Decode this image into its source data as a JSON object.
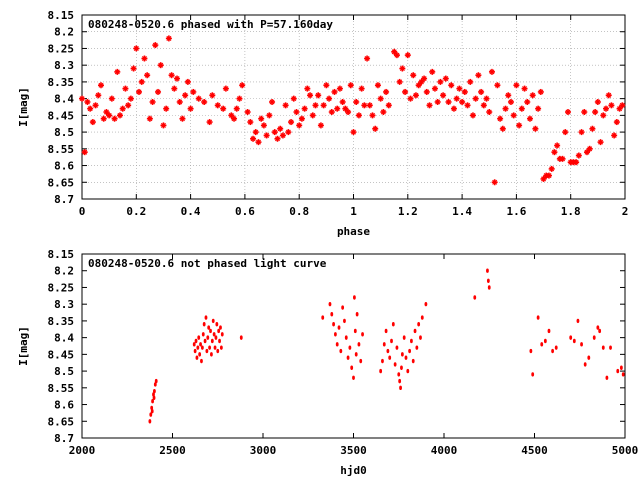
{
  "chart_data": [
    {
      "type": "scatter",
      "title": "080248-0520.6 phased with P=57.160day",
      "xlabel": "phase",
      "ylabel": "I[mag]",
      "xlim": [
        0,
        2
      ],
      "ylim": [
        8.7,
        8.15
      ],
      "x_ticks": [
        "0",
        "0.2",
        "0.4",
        "0.6",
        "0.8",
        "1",
        "1.2",
        "1.4",
        "1.6",
        "1.8",
        "2"
      ],
      "x_tick_values": [
        0,
        0.2,
        0.4,
        0.6,
        0.8,
        1.0,
        1.2,
        1.4,
        1.6,
        1.8,
        2.0
      ],
      "y_ticks": [
        "8.15",
        "8.2",
        "8.25",
        "8.3",
        "8.35",
        "8.4",
        "8.45",
        "8.5",
        "8.55",
        "8.6",
        "8.65",
        "8.7"
      ],
      "y_tick_values": [
        8.15,
        8.2,
        8.25,
        8.3,
        8.35,
        8.4,
        8.45,
        8.5,
        8.55,
        8.6,
        8.65,
        8.7
      ],
      "grid": true,
      "marker_color": "#ff0000",
      "points": [
        [
          0.0,
          8.4
        ],
        [
          0.01,
          8.56
        ],
        [
          0.02,
          8.41
        ],
        [
          0.03,
          8.43
        ],
        [
          0.04,
          8.47
        ],
        [
          0.05,
          8.42
        ],
        [
          0.06,
          8.39
        ],
        [
          0.07,
          8.36
        ],
        [
          0.08,
          8.46
        ],
        [
          0.09,
          8.44
        ],
        [
          0.1,
          8.45
        ],
        [
          0.11,
          8.4
        ],
        [
          0.12,
          8.46
        ],
        [
          0.13,
          8.32
        ],
        [
          0.14,
          8.45
        ],
        [
          0.15,
          8.43
        ],
        [
          0.16,
          8.37
        ],
        [
          0.17,
          8.42
        ],
        [
          0.18,
          8.4
        ],
        [
          0.19,
          8.31
        ],
        [
          0.2,
          8.25
        ],
        [
          0.21,
          8.38
        ],
        [
          0.22,
          8.35
        ],
        [
          0.23,
          8.28
        ],
        [
          0.24,
          8.33
        ],
        [
          0.25,
          8.46
        ],
        [
          0.26,
          8.41
        ],
        [
          0.27,
          8.24
        ],
        [
          0.28,
          8.38
        ],
        [
          0.29,
          8.3
        ],
        [
          0.3,
          8.48
        ],
        [
          0.31,
          8.43
        ],
        [
          0.32,
          8.22
        ],
        [
          0.33,
          8.33
        ],
        [
          0.34,
          8.37
        ],
        [
          0.35,
          8.34
        ],
        [
          0.36,
          8.41
        ],
        [
          0.37,
          8.46
        ],
        [
          0.38,
          8.39
        ],
        [
          0.39,
          8.35
        ],
        [
          0.4,
          8.43
        ],
        [
          0.41,
          8.38
        ],
        [
          0.43,
          8.4
        ],
        [
          0.45,
          8.41
        ],
        [
          0.47,
          8.47
        ],
        [
          0.48,
          8.39
        ],
        [
          0.5,
          8.42
        ],
        [
          0.52,
          8.43
        ],
        [
          0.53,
          8.37
        ],
        [
          0.55,
          8.45
        ],
        [
          0.56,
          8.46
        ],
        [
          0.57,
          8.43
        ],
        [
          0.58,
          8.4
        ],
        [
          0.59,
          8.36
        ],
        [
          0.61,
          8.44
        ],
        [
          0.62,
          8.47
        ],
        [
          0.63,
          8.52
        ],
        [
          0.64,
          8.5
        ],
        [
          0.65,
          8.53
        ],
        [
          0.66,
          8.46
        ],
        [
          0.67,
          8.48
        ],
        [
          0.68,
          8.51
        ],
        [
          0.69,
          8.45
        ],
        [
          0.7,
          8.41
        ],
        [
          0.71,
          8.5
        ],
        [
          0.72,
          8.52
        ],
        [
          0.73,
          8.49
        ],
        [
          0.74,
          8.51
        ],
        [
          0.75,
          8.42
        ],
        [
          0.76,
          8.5
        ],
        [
          0.77,
          8.47
        ],
        [
          0.78,
          8.4
        ],
        [
          0.79,
          8.44
        ],
        [
          0.8,
          8.48
        ],
        [
          0.81,
          8.46
        ],
        [
          0.82,
          8.43
        ],
        [
          0.83,
          8.37
        ],
        [
          0.84,
          8.39
        ],
        [
          0.85,
          8.45
        ],
        [
          0.86,
          8.42
        ],
        [
          0.87,
          8.39
        ],
        [
          0.88,
          8.48
        ],
        [
          0.89,
          8.42
        ],
        [
          0.9,
          8.36
        ],
        [
          0.91,
          8.4
        ],
        [
          0.92,
          8.44
        ],
        [
          0.93,
          8.38
        ],
        [
          0.94,
          8.43
        ],
        [
          0.95,
          8.37
        ],
        [
          0.96,
          8.41
        ],
        [
          0.97,
          8.43
        ],
        [
          0.98,
          8.44
        ],
        [
          0.99,
          8.36
        ],
        [
          1.0,
          8.5
        ],
        [
          1.01,
          8.41
        ],
        [
          1.02,
          8.45
        ],
        [
          1.03,
          8.37
        ],
        [
          1.04,
          8.42
        ],
        [
          1.05,
          8.28
        ],
        [
          1.06,
          8.42
        ],
        [
          1.07,
          8.45
        ],
        [
          1.08,
          8.49
        ],
        [
          1.09,
          8.36
        ],
        [
          1.1,
          8.4
        ],
        [
          1.11,
          8.44
        ],
        [
          1.12,
          8.38
        ],
        [
          1.13,
          8.42
        ],
        [
          1.15,
          8.26
        ],
        [
          1.16,
          8.27
        ],
        [
          1.17,
          8.35
        ],
        [
          1.18,
          8.31
        ],
        [
          1.19,
          8.38
        ],
        [
          1.2,
          8.27
        ],
        [
          1.21,
          8.4
        ],
        [
          1.22,
          8.33
        ],
        [
          1.23,
          8.39
        ],
        [
          1.24,
          8.36
        ],
        [
          1.25,
          8.35
        ],
        [
          1.26,
          8.34
        ],
        [
          1.27,
          8.38
        ],
        [
          1.28,
          8.42
        ],
        [
          1.29,
          8.32
        ],
        [
          1.3,
          8.37
        ],
        [
          1.31,
          8.41
        ],
        [
          1.32,
          8.35
        ],
        [
          1.33,
          8.39
        ],
        [
          1.34,
          8.34
        ],
        [
          1.35,
          8.41
        ],
        [
          1.36,
          8.36
        ],
        [
          1.37,
          8.43
        ],
        [
          1.38,
          8.4
        ],
        [
          1.39,
          8.37
        ],
        [
          1.4,
          8.41
        ],
        [
          1.41,
          8.38
        ],
        [
          1.42,
          8.42
        ],
        [
          1.43,
          8.35
        ],
        [
          1.44,
          8.45
        ],
        [
          1.45,
          8.4
        ],
        [
          1.46,
          8.33
        ],
        [
          1.47,
          8.38
        ],
        [
          1.48,
          8.42
        ],
        [
          1.49,
          8.4
        ],
        [
          1.5,
          8.44
        ],
        [
          1.51,
          8.32
        ],
        [
          1.52,
          8.65
        ],
        [
          1.53,
          8.36
        ],
        [
          1.54,
          8.46
        ],
        [
          1.55,
          8.49
        ],
        [
          1.56,
          8.43
        ],
        [
          1.57,
          8.39
        ],
        [
          1.58,
          8.41
        ],
        [
          1.59,
          8.45
        ],
        [
          1.6,
          8.36
        ],
        [
          1.61,
          8.48
        ],
        [
          1.62,
          8.43
        ],
        [
          1.63,
          8.37
        ],
        [
          1.64,
          8.41
        ],
        [
          1.65,
          8.46
        ],
        [
          1.66,
          8.39
        ],
        [
          1.67,
          8.49
        ],
        [
          1.68,
          8.43
        ],
        [
          1.69,
          8.38
        ],
        [
          1.7,
          8.64
        ],
        [
          1.71,
          8.63
        ],
        [
          1.72,
          8.63
        ],
        [
          1.73,
          8.61
        ],
        [
          1.74,
          8.56
        ],
        [
          1.75,
          8.54
        ],
        [
          1.76,
          8.58
        ],
        [
          1.77,
          8.58
        ],
        [
          1.78,
          8.5
        ],
        [
          1.79,
          8.44
        ],
        [
          1.8,
          8.59
        ],
        [
          1.81,
          8.59
        ],
        [
          1.82,
          8.59
        ],
        [
          1.83,
          8.57
        ],
        [
          1.84,
          8.5
        ],
        [
          1.85,
          8.44
        ],
        [
          1.86,
          8.56
        ],
        [
          1.87,
          8.55
        ],
        [
          1.88,
          8.49
        ],
        [
          1.89,
          8.44
        ],
        [
          1.9,
          8.41
        ],
        [
          1.91,
          8.53
        ],
        [
          1.92,
          8.45
        ],
        [
          1.93,
          8.43
        ],
        [
          1.94,
          8.39
        ],
        [
          1.95,
          8.42
        ],
        [
          1.96,
          8.51
        ],
        [
          1.97,
          8.47
        ],
        [
          1.98,
          8.43
        ],
        [
          1.99,
          8.42
        ]
      ]
    },
    {
      "type": "scatter",
      "title": "080248-0520.6 not phased light curve",
      "xlabel": "hjd0",
      "ylabel": "I[mag]",
      "xlim": [
        2000,
        5000
      ],
      "ylim": [
        8.7,
        8.15
      ],
      "x_ticks": [
        "2000",
        "2500",
        "3000",
        "3500",
        "4000",
        "4500",
        "5000"
      ],
      "x_tick_values": [
        2000,
        2500,
        3000,
        3500,
        4000,
        4500,
        5000
      ],
      "y_ticks": [
        "8.15",
        "8.2",
        "8.25",
        "8.3",
        "8.35",
        "8.4",
        "8.45",
        "8.5",
        "8.55",
        "8.6",
        "8.65",
        "8.7"
      ],
      "y_tick_values": [
        8.15,
        8.2,
        8.25,
        8.3,
        8.35,
        8.4,
        8.45,
        8.5,
        8.55,
        8.6,
        8.65,
        8.7
      ],
      "grid": false,
      "marker_color": "#ff0000",
      "points": [
        [
          2375,
          8.65
        ],
        [
          2380,
          8.63
        ],
        [
          2385,
          8.61
        ],
        [
          2390,
          8.59
        ],
        [
          2395,
          8.57
        ],
        [
          2400,
          8.56
        ],
        [
          2405,
          8.54
        ],
        [
          2410,
          8.53
        ],
        [
          2388,
          8.62
        ],
        [
          2398,
          8.58
        ],
        [
          2620,
          8.42
        ],
        [
          2625,
          8.44
        ],
        [
          2630,
          8.41
        ],
        [
          2635,
          8.46
        ],
        [
          2640,
          8.43
        ],
        [
          2645,
          8.4
        ],
        [
          2650,
          8.45
        ],
        [
          2655,
          8.42
        ],
        [
          2660,
          8.47
        ],
        [
          2665,
          8.43
        ],
        [
          2670,
          8.39
        ],
        [
          2675,
          8.36
        ],
        [
          2680,
          8.41
        ],
        [
          2685,
          8.34
        ],
        [
          2690,
          8.44
        ],
        [
          2695,
          8.4
        ],
        [
          2700,
          8.37
        ],
        [
          2705,
          8.43
        ],
        [
          2710,
          8.38
        ],
        [
          2715,
          8.45
        ],
        [
          2720,
          8.41
        ],
        [
          2725,
          8.35
        ],
        [
          2730,
          8.39
        ],
        [
          2735,
          8.43
        ],
        [
          2740,
          8.4
        ],
        [
          2745,
          8.36
        ],
        [
          2750,
          8.44
        ],
        [
          2755,
          8.38
        ],
        [
          2760,
          8.41
        ],
        [
          2765,
          8.37
        ],
        [
          2770,
          8.43
        ],
        [
          2775,
          8.39
        ],
        [
          2880,
          8.4
        ],
        [
          3330,
          8.34
        ],
        [
          3370,
          8.3
        ],
        [
          3380,
          8.33
        ],
        [
          3390,
          8.36
        ],
        [
          3400,
          8.39
        ],
        [
          3410,
          8.42
        ],
        [
          3420,
          8.37
        ],
        [
          3430,
          8.44
        ],
        [
          3440,
          8.31
        ],
        [
          3450,
          8.35
        ],
        [
          3460,
          8.4
        ],
        [
          3470,
          8.46
        ],
        [
          3480,
          8.43
        ],
        [
          3490,
          8.49
        ],
        [
          3500,
          8.52
        ],
        [
          3505,
          8.28
        ],
        [
          3510,
          8.38
        ],
        [
          3515,
          8.45
        ],
        [
          3520,
          8.33
        ],
        [
          3530,
          8.42
        ],
        [
          3540,
          8.47
        ],
        [
          3550,
          8.39
        ],
        [
          3650,
          8.5
        ],
        [
          3660,
          8.47
        ],
        [
          3670,
          8.42
        ],
        [
          3680,
          8.38
        ],
        [
          3690,
          8.44
        ],
        [
          3700,
          8.46
        ],
        [
          3710,
          8.41
        ],
        [
          3720,
          8.36
        ],
        [
          3730,
          8.48
        ],
        [
          3740,
          8.43
        ],
        [
          3750,
          8.51
        ],
        [
          3755,
          8.53
        ],
        [
          3760,
          8.55
        ],
        [
          3765,
          8.49
        ],
        [
          3770,
          8.45
        ],
        [
          3780,
          8.4
        ],
        [
          3790,
          8.46
        ],
        [
          3800,
          8.5
        ],
        [
          3810,
          8.44
        ],
        [
          3820,
          8.41
        ],
        [
          3830,
          8.47
        ],
        [
          3840,
          8.38
        ],
        [
          3850,
          8.43
        ],
        [
          3860,
          8.36
        ],
        [
          3870,
          8.4
        ],
        [
          3880,
          8.34
        ],
        [
          3900,
          8.3
        ],
        [
          4170,
          8.28
        ],
        [
          4240,
          8.2
        ],
        [
          4245,
          8.23
        ],
        [
          4250,
          8.25
        ],
        [
          4480,
          8.44
        ],
        [
          4490,
          8.51
        ],
        [
          4520,
          8.34
        ],
        [
          4540,
          8.42
        ],
        [
          4560,
          8.41
        ],
        [
          4580,
          8.38
        ],
        [
          4600,
          8.44
        ],
        [
          4620,
          8.43
        ],
        [
          4700,
          8.4
        ],
        [
          4720,
          8.41
        ],
        [
          4740,
          8.35
        ],
        [
          4760,
          8.42
        ],
        [
          4780,
          8.48
        ],
        [
          4800,
          8.46
        ],
        [
          4830,
          8.4
        ],
        [
          4850,
          8.37
        ],
        [
          4860,
          8.38
        ],
        [
          4880,
          8.43
        ],
        [
          4900,
          8.52
        ],
        [
          4920,
          8.43
        ],
        [
          4960,
          8.5
        ],
        [
          4980,
          8.49
        ],
        [
          4990,
          8.51
        ]
      ]
    }
  ]
}
